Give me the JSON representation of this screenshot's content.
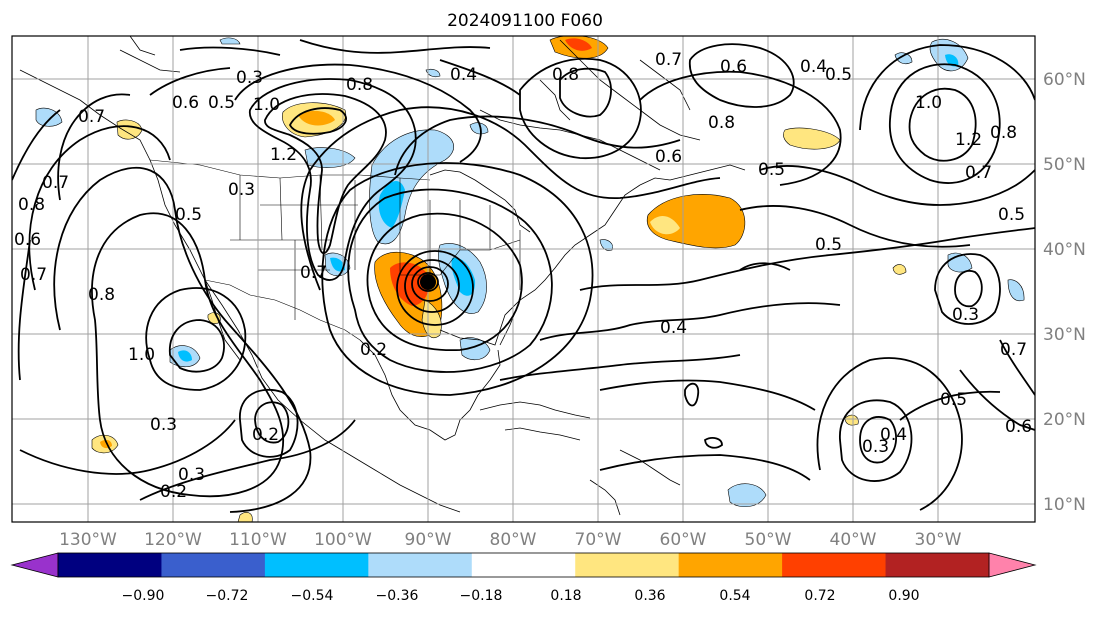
{
  "title": "2024091100 F060",
  "map": {
    "lon_labels": [
      "130°W",
      "120°W",
      "110°W",
      "100°W",
      "90°W",
      "80°W",
      "70°W",
      "60°W",
      "50°W",
      "40°W",
      "30°W"
    ],
    "lat_labels": [
      "60°N",
      "50°N",
      "40°N",
      "30°N",
      "20°N",
      "10°N"
    ],
    "contour_labels": [
      "0.3",
      "0.8",
      "0.6",
      "0.5",
      "1.0",
      "1.2",
      "0.4",
      "0.6",
      "0.8",
      "0.7",
      "0.5",
      "0.4",
      "0.6",
      "0.5",
      "0.8",
      "1.0",
      "1.2",
      "0.8",
      "0.7",
      "0.5",
      "0.5",
      "0.4",
      "0.3",
      "0.7",
      "0.5",
      "0.6",
      "0.3",
      "0.4",
      "0.7",
      "0.3",
      "0.2",
      "0.3",
      "0.2",
      "0.7",
      "0.8",
      "0.6",
      "0.7",
      "0.8",
      "1.0",
      "0.7",
      "0.5",
      "0.3",
      "0.2"
    ],
    "colors": {
      "contour": "#000000",
      "grid": "#a0a0a0",
      "pos_light": "#ffe680",
      "pos_mid": "#ffa500",
      "pos_dark": "#ff4000",
      "neg_light": "#aedcfa",
      "neg_mid": "#00bfff"
    },
    "low_marker": "storm-center"
  },
  "colorbar": {
    "ticks": [
      "−0.90",
      "−0.72",
      "−0.54",
      "−0.36",
      "−0.18",
      "0.18",
      "0.36",
      "0.54",
      "0.72",
      "0.90"
    ],
    "segments": [
      "#9932cc",
      "#000080",
      "#3a5fcd",
      "#00bfff",
      "#aedcfa",
      "#ffffff",
      "#ffe680",
      "#ffa500",
      "#ff4000",
      "#b22222",
      "#ff82ab"
    ]
  }
}
